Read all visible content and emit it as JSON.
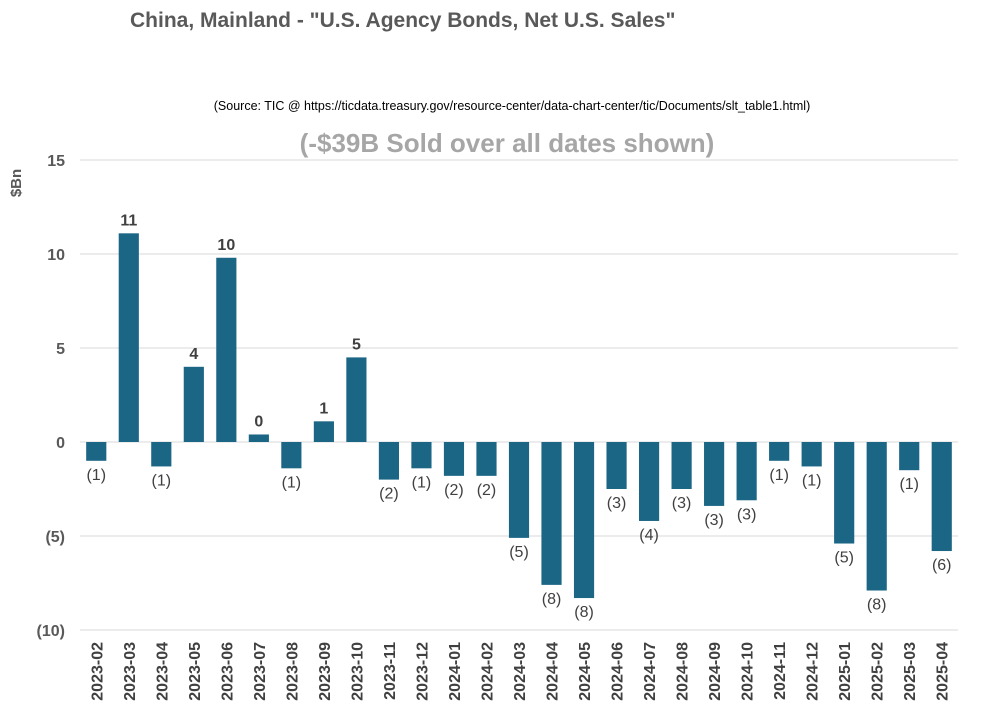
{
  "chart_data": {
    "type": "bar",
    "title": "China, Mainland - \"U.S. Agency Bonds, Net U.S. Sales\"",
    "source": "(Source: TIC @ https://ticdata.treasury.gov/resource-center/data-chart-center/tic/Documents/slt_table1.html)",
    "subtitle": "(-$39B Sold over all dates shown)",
    "ylabel": "$Bn",
    "ylim": [
      -10,
      15
    ],
    "yticks": [
      15,
      10,
      5,
      0,
      -5,
      -10
    ],
    "ytick_labels": [
      "15",
      "10",
      "5",
      "0",
      "(5)",
      "(10)"
    ],
    "grid": true,
    "bar_color": "#1b6585",
    "categories": [
      "2023-02",
      "2023-03",
      "2023-04",
      "2023-05",
      "2023-06",
      "2023-07",
      "2023-08",
      "2023-09",
      "2023-10",
      "2023-11",
      "2023-12",
      "2024-01",
      "2024-02",
      "2024-03",
      "2024-04",
      "2024-05",
      "2024-06",
      "2024-07",
      "2024-08",
      "2024-09",
      "2024-10",
      "2024-11",
      "2024-12",
      "2025-01",
      "2025-02",
      "2025-03",
      "2025-04"
    ],
    "values": [
      -1.0,
      11.1,
      -1.3,
      4.0,
      9.8,
      0.4,
      -1.4,
      1.1,
      4.5,
      -2.0,
      -1.4,
      -1.8,
      -1.8,
      -5.1,
      -7.6,
      -8.3,
      -2.5,
      -4.2,
      -2.5,
      -3.4,
      -3.1,
      -1.0,
      -1.3,
      -5.4,
      -7.9,
      -1.5,
      -5.8
    ],
    "data_labels": [
      "(1)",
      "11",
      "(1)",
      "4",
      "10",
      "0",
      "(1)",
      "1",
      "5",
      "(2)",
      "(1)",
      "(2)",
      "(2)",
      "(5)",
      "(8)",
      "(8)",
      "(3)",
      "(4)",
      "(3)",
      "(3)",
      "(3)",
      "(1)",
      "(1)",
      "(5)",
      "(8)",
      "(1)",
      "(6)"
    ]
  }
}
